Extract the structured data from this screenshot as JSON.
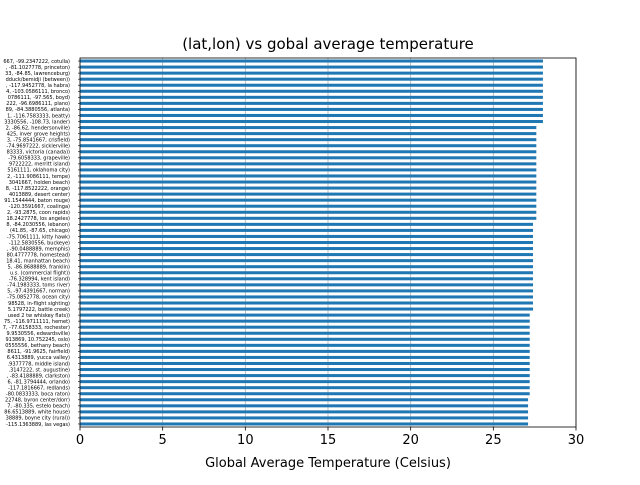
{
  "chart_data": {
    "type": "bar",
    "orientation": "horizontal",
    "title": "(lat,lon) vs gobal average temperature",
    "xlabel": "Global Average Temperature (Celsius)",
    "ylabel": "",
    "xlim": [
      0,
      30
    ],
    "xticks": [
      0,
      5,
      10,
      15,
      20,
      25,
      30
    ],
    "grid": true,
    "bar_color": "#1f77b4",
    "categories": [
      "-115.1363889, las vegas)",
      "38889, boyne city (rural))",
      "86.6513889, white house)",
      "7, -80.335, estelo beach)",
      "22748, byron center/dorr)",
      "-80.0833333, boca raton)",
      "-117.1816667, redlands)",
      "6, -81.3794444, orlando)",
      ", -83.4188889, clarkston)",
      ".3147222, st. augustine)",
      ".9377778, middle island)",
      "6.4313889, yucca valley)",
      "8611, -91.9625, fairfield)",
      "0555556, bethany beach)",
      "913869, 10.752245, oslo)",
      "9.9530556, edwardsville)",
      "7, -77.6158333, rochester)",
      "75, -116.9711111, hemet)",
      "used 2 tw whiskey flats))",
      "5.1797222, battle creek)",
      "98528, in-flight sighting)",
      "-75.0852778, ocean city)",
      "5, -97.4391667, norman)",
      "-74.1983333, toms river)",
      "-76.328994, kent island)",
      "u.s. (commercial flight))",
      "5, -86.8688889, franklin)",
      "18.41, manhattan beach)",
      "80.4777778, homestead)",
      ", -90.0488889, memphis)",
      "-112.5830556, buckeye)",
      "-75.7061111, kitty hawk)",
      "(41.85, -87.65, chicago)",
      "8, -84.2030556, lebanon)",
      "18.2427778, los angeles)",
      "2, -93.2875, coon rapids)",
      "-120.3591667, coalinga)",
      "91.1544444, baton rouge)",
      "4013889, desert center)",
      "8, -117.8522222, orange)",
      "3041667, holden beach)",
      "2, -111.9086111, tempe)",
      "5161111, oklahoma city)",
      "9722222, merritt island)",
      "-79.6058333, grapeville)",
      "83333, victoria (canada))",
      "-74.9697222, sicklerville)",
      "3, -75.8541667, crisfield)",
      "425, inver grove heights)",
      "2, -86.62, hendersonville)",
      "3330556, -108.73, lander)",
      "1, -116.7583333, beatty)",
      "89, -84.3880556, atlanta)",
      "222, -96.6986111, plano)",
      "0786111, -97.565, boyd)",
      "4, -103.0586111, bronco)",
      ", -117.9452778, la habra)",
      "dduck/bemidji (between))",
      "33, -84.85, lawrenceburg)",
      ", -81.1027778, princeton)",
      "667, -99.2347222, cotulla)"
    ],
    "values": [
      27.1,
      27.1,
      27.1,
      27.1,
      27.1,
      27.2,
      27.2,
      27.2,
      27.2,
      27.2,
      27.2,
      27.2,
      27.2,
      27.2,
      27.2,
      27.2,
      27.2,
      27.2,
      27.2,
      27.4,
      27.4,
      27.4,
      27.4,
      27.4,
      27.4,
      27.4,
      27.4,
      27.4,
      27.4,
      27.4,
      27.4,
      27.4,
      27.4,
      27.4,
      27.6,
      27.6,
      27.6,
      27.6,
      27.6,
      27.6,
      27.6,
      27.6,
      27.6,
      27.6,
      27.6,
      27.6,
      27.6,
      27.6,
      27.6,
      27.6,
      28.0,
      28.0,
      28.0,
      28.0,
      28.0,
      28.0,
      28.0,
      28.0,
      28.0,
      28.0,
      28.0
    ]
  }
}
